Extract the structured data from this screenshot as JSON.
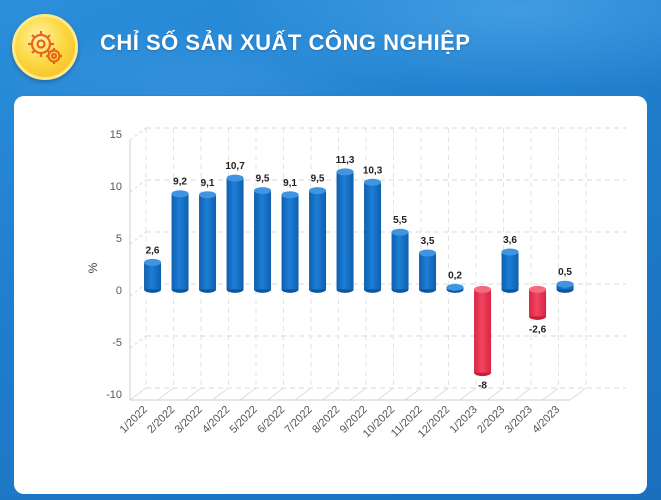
{
  "header": {
    "title": "CHỈ SỐ SẢN XUẤT CÔNG NGHIỆP",
    "logo_icon": "gears-icon"
  },
  "colors": {
    "positive_bar": "#1672c9",
    "negative_bar": "#ee3350",
    "background": "#1f7dcc"
  },
  "chart_data": {
    "type": "bar",
    "title": "",
    "xlabel": "",
    "ylabel": "%",
    "ylim": [
      -10,
      15
    ],
    "yticks": [
      15,
      10,
      5,
      0,
      -5,
      -10
    ],
    "grid": true,
    "categories": [
      "1/2022",
      "2/2022",
      "3/2022",
      "4/2022",
      "5/2022",
      "6/2022",
      "7/2022",
      "8/2022",
      "9/2022",
      "10/2022",
      "11/2022",
      "12/2022",
      "1/2023",
      "2/2023",
      "3/2023",
      "4/2023"
    ],
    "values": [
      2.6,
      9.2,
      9.1,
      10.7,
      9.5,
      9.1,
      9.5,
      11.3,
      10.3,
      5.5,
      3.5,
      0.2,
      -8,
      3.6,
      -2.6,
      0.5
    ],
    "data_labels": [
      "2,6",
      "9,2",
      "9,1",
      "10,7",
      "9,5",
      "9,1",
      "9,5",
      "11,3",
      "10,3",
      "5,5",
      "3,5",
      "0,2",
      "-8",
      "3,6",
      "-2,6",
      "0,5"
    ]
  }
}
